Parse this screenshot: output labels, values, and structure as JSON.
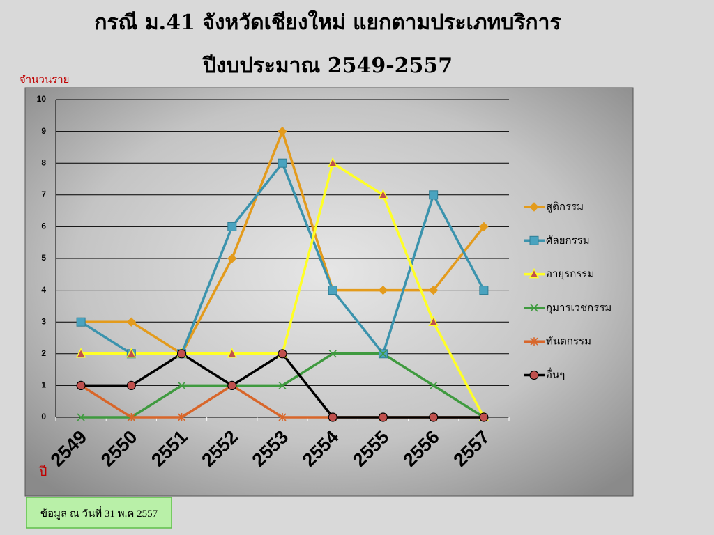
{
  "chart_data": {
    "type": "line",
    "title": [
      "กรณี ม.41 จังหวัดเชียงใหม่ แยกตามประเภทบริการ",
      "ปีงบประมาณ 2549-2557"
    ],
    "y_label": "จำนวนราย",
    "x_label": "ปี",
    "note": "ข้อมูล ณ วันที่ 31 พ.ค 2557",
    "categories": [
      "2549",
      "2550",
      "2551",
      "2552",
      "2553",
      "2554",
      "2555",
      "2556",
      "2557"
    ],
    "series": [
      {
        "name": "สูติกรรม",
        "color": "#e39b1c",
        "marker": "diamond",
        "marker_fill": "#e39b1c",
        "values": [
          3,
          3,
          2,
          5,
          9,
          4,
          4,
          4,
          6
        ]
      },
      {
        "name": "ศัลยกรรม",
        "color": "#3b93ad",
        "marker": "square",
        "marker_fill": "#4aa3bf",
        "values": [
          3,
          2,
          2,
          6,
          8,
          4,
          2,
          7,
          4
        ]
      },
      {
        "name": "อายุรกรรม",
        "color": "#ffff26",
        "marker": "triangle",
        "marker_fill": "#c0504d",
        "values": [
          2,
          2,
          2,
          2,
          2,
          8,
          7,
          3,
          0
        ]
      },
      {
        "name": "กุมารเวชกรรม",
        "color": "#3f9a3f",
        "marker": "cross",
        "marker_fill": "#3f9a3f",
        "values": [
          0,
          0,
          1,
          1,
          1,
          2,
          2,
          1,
          0
        ]
      },
      {
        "name": "ทันตกรรม",
        "color": "#d8662a",
        "marker": "star",
        "marker_fill": "#d8662a",
        "values": [
          1,
          0,
          0,
          1,
          0,
          0,
          0,
          0,
          0
        ]
      },
      {
        "name": "อื่นๆ",
        "color": "#000000",
        "marker": "circle",
        "marker_fill": "#c0504d",
        "values": [
          1,
          1,
          2,
          1,
          2,
          0,
          0,
          0,
          0
        ]
      }
    ],
    "ylim": [
      0,
      10
    ],
    "yticks": [
      0,
      1,
      2,
      3,
      4,
      5,
      6,
      7,
      8,
      9,
      10
    ],
    "grid": true,
    "legend": "right"
  }
}
